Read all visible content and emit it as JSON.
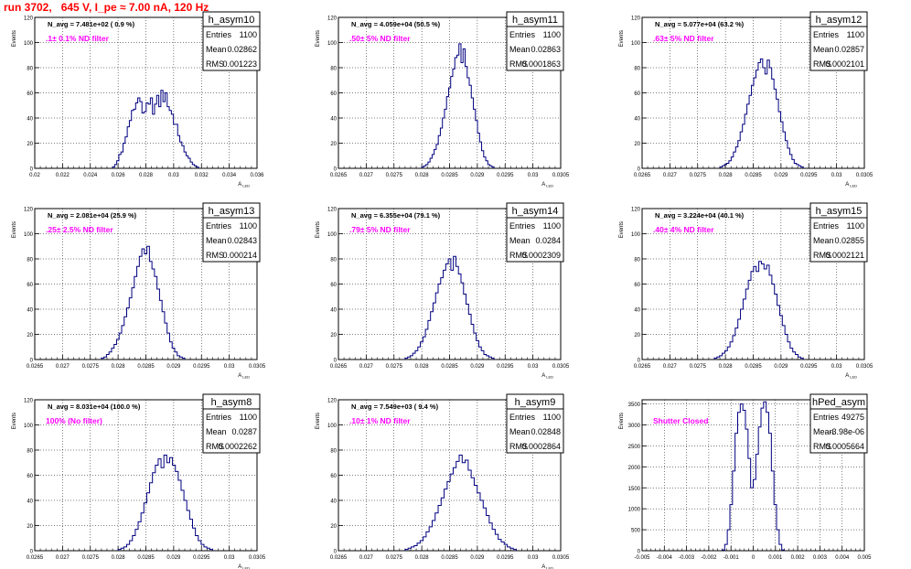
{
  "page": {
    "title": "run 3702,   645 V, I_pe ≈ 7.00 nA, 120 Hz"
  },
  "chart_data": [
    {
      "type": "bar",
      "name": "h_asym10",
      "stats": [
        [
          "Entries",
          "1100"
        ],
        [
          "Mean",
          "0.02862"
        ],
        [
          "RMS",
          "0.001223"
        ]
      ],
      "navg": "N_avg = 7.481e+02 ( 0.9 %)",
      "filter": ".1± 0.1% ND filter",
      "xlabel": "A_LED",
      "ylabel": "Events",
      "xlim": [
        0.02,
        0.036
      ],
      "ylim": [
        0,
        120
      ],
      "xticks": [
        0.02,
        0.022,
        0.024,
        0.026,
        0.028,
        0.03,
        0.032,
        0.034,
        0.036
      ],
      "xticklabels": [
        "0.02",
        "0.022",
        "0.024",
        "0.026",
        "0.028",
        "0.03",
        "0.032",
        "0.034",
        "0.036"
      ],
      "yticks": [
        0,
        20,
        40,
        60,
        80,
        100,
        120
      ],
      "x_range": [
        0.0256,
        0.0318
      ],
      "values": [
        1,
        3,
        6,
        11,
        13,
        20,
        25,
        33,
        38,
        46,
        47,
        52,
        56,
        53,
        44,
        45,
        52,
        51,
        56,
        43,
        51,
        58,
        49,
        62,
        53,
        60,
        49,
        46,
        43,
        35,
        35,
        26,
        21,
        18,
        13,
        10,
        8,
        5,
        3,
        2,
        1
      ]
    },
    {
      "type": "bar",
      "name": "h_asym11",
      "stats": [
        [
          "Entries",
          "1100"
        ],
        [
          "Mean",
          "0.02863"
        ],
        [
          "RMS",
          "0.0001863"
        ]
      ],
      "navg": "N_avg = 4.059e+04 (50.5 %)",
      "filter": ".50± 5% ND filter",
      "xlabel": "A_LED",
      "ylabel": "Events",
      "xlim": [
        0.0265,
        0.0305
      ],
      "ylim": [
        0,
        120
      ],
      "xticks": [
        0.0265,
        0.027,
        0.0275,
        0.028,
        0.0285,
        0.029,
        0.0295,
        0.03,
        0.0305
      ],
      "xticklabels": [
        "0.0265",
        "0.027",
        "0.0275",
        "0.028",
        "0.0285",
        "0.029",
        "0.0295",
        "0.03",
        "0.0305"
      ],
      "yticks": [
        0,
        20,
        40,
        60,
        80,
        100,
        120
      ],
      "x_range": [
        0.028,
        0.0293
      ],
      "values": [
        1,
        2,
        3,
        5,
        8,
        11,
        15,
        19,
        26,
        32,
        40,
        47,
        57,
        64,
        73,
        79,
        88,
        90,
        99,
        84,
        95,
        81,
        72,
        66,
        56,
        47,
        38,
        28,
        21,
        14,
        9,
        6,
        3,
        2,
        1
      ]
    },
    {
      "type": "bar",
      "name": "h_asym12",
      "stats": [
        [
          "Entries",
          "1100"
        ],
        [
          "Mean",
          "0.02857"
        ],
        [
          "RMS",
          "0.0002101"
        ]
      ],
      "navg": "N_avg = 5.077e+04 (63.2 %)",
      "filter": ".63± 5% ND filter",
      "xlabel": "A_LED",
      "ylabel": "Events",
      "xlim": [
        0.0265,
        0.0305
      ],
      "ylim": [
        0,
        120
      ],
      "xticks": [
        0.0265,
        0.027,
        0.0275,
        0.028,
        0.0285,
        0.029,
        0.0295,
        0.03,
        0.0305
      ],
      "xticklabels": [
        "0.0265",
        "0.027",
        "0.0275",
        "0.028",
        "0.0285",
        "0.029",
        "0.0295",
        "0.03",
        "0.0305"
      ],
      "yticks": [
        0,
        20,
        40,
        60,
        80,
        100,
        120
      ],
      "x_range": [
        0.0279,
        0.0294
      ],
      "values": [
        1,
        2,
        3,
        4,
        6,
        9,
        13,
        17,
        22,
        29,
        35,
        43,
        51,
        58,
        66,
        72,
        78,
        84,
        87,
        80,
        75,
        86,
        80,
        71,
        63,
        55,
        45,
        37,
        29,
        22,
        16,
        11,
        7,
        4,
        3,
        2,
        1
      ]
    },
    {
      "type": "bar",
      "name": "h_asym13",
      "stats": [
        [
          "Entries",
          "1100"
        ],
        [
          "Mean",
          "0.02843"
        ],
        [
          "RMS",
          "0.000214"
        ]
      ],
      "navg": "N_avg = 2.081e+04 (25.9 %)",
      "filter": ".25± 2.5% ND filter",
      "xlabel": "A_LED",
      "ylabel": "Events",
      "xlim": [
        0.0265,
        0.0305
      ],
      "ylim": [
        0,
        120
      ],
      "xticks": [
        0.0265,
        0.027,
        0.0275,
        0.028,
        0.0285,
        0.029,
        0.0295,
        0.03,
        0.0305
      ],
      "xticklabels": [
        "0.0265",
        "0.027",
        "0.0275",
        "0.028",
        "0.0285",
        "0.029",
        "0.0295",
        "0.03",
        "0.0305"
      ],
      "yticks": [
        0,
        20,
        40,
        60,
        80,
        100,
        120
      ],
      "x_range": [
        0.0277,
        0.0292
      ],
      "values": [
        1,
        2,
        4,
        6,
        9,
        12,
        16,
        21,
        27,
        34,
        41,
        49,
        57,
        66,
        74,
        82,
        88,
        84,
        90,
        78,
        72,
        66,
        56,
        47,
        38,
        29,
        21,
        14,
        9,
        6,
        3,
        2,
        1
      ]
    },
    {
      "type": "bar",
      "name": "h_asym14",
      "stats": [
        [
          "Entries",
          "1100"
        ],
        [
          "Mean",
          "0.0284"
        ],
        [
          "RMS",
          "0.0002309"
        ]
      ],
      "navg": "N_avg = 6.355e+04 (79.1 %)",
      "filter": ".79± 5% ND filter",
      "xlabel": "A_LED",
      "ylabel": "Events",
      "xlim": [
        0.0265,
        0.0305
      ],
      "ylim": [
        0,
        120
      ],
      "xticks": [
        0.0265,
        0.027,
        0.0275,
        0.028,
        0.0285,
        0.029,
        0.0295,
        0.03,
        0.0305
      ],
      "xticklabels": [
        "0.0265",
        "0.027",
        "0.0275",
        "0.028",
        "0.0285",
        "0.029",
        "0.0295",
        "0.03",
        "0.0305"
      ],
      "yticks": [
        0,
        20,
        40,
        60,
        80,
        100,
        120
      ],
      "x_range": [
        0.0277,
        0.0293
      ],
      "values": [
        1,
        2,
        3,
        5,
        7,
        10,
        14,
        18,
        24,
        31,
        38,
        45,
        53,
        60,
        65,
        71,
        76,
        80,
        71,
        82,
        74,
        68,
        61,
        52,
        44,
        36,
        28,
        21,
        15,
        10,
        7,
        4,
        3,
        2,
        1
      ]
    },
    {
      "type": "bar",
      "name": "h_asym15",
      "stats": [
        [
          "Entries",
          "1100"
        ],
        [
          "Mean",
          "0.02855"
        ],
        [
          "RMS",
          "0.0002121"
        ]
      ],
      "navg": "N_avg = 3.224e+04 (40.1 %)",
      "filter": ".40± 4% ND filter",
      "xlabel": "A_LED",
      "ylabel": "Events",
      "xlim": [
        0.0265,
        0.0305
      ],
      "ylim": [
        0,
        120
      ],
      "xticks": [
        0.0265,
        0.027,
        0.0275,
        0.028,
        0.0285,
        0.029,
        0.0295,
        0.03,
        0.0305
      ],
      "xticklabels": [
        "0.0265",
        "0.027",
        "0.0275",
        "0.028",
        "0.0285",
        "0.029",
        "0.0295",
        "0.03",
        "0.0305"
      ],
      "yticks": [
        0,
        20,
        40,
        60,
        80,
        100,
        120
      ],
      "x_range": [
        0.0278,
        0.0294
      ],
      "values": [
        1,
        2,
        3,
        5,
        7,
        10,
        14,
        19,
        25,
        32,
        40,
        48,
        56,
        63,
        70,
        74,
        70,
        78,
        76,
        72,
        75,
        67,
        60,
        52,
        43,
        35,
        27,
        20,
        14,
        9,
        6,
        4,
        2,
        1
      ]
    },
    {
      "type": "bar",
      "name": "h_asym8",
      "stats": [
        [
          "Entries",
          "1100"
        ],
        [
          "Mean",
          "0.0287"
        ],
        [
          "RMS",
          "0.0002262"
        ]
      ],
      "navg": "N_avg = 8.031e+04 (100.0 %)",
      "filter": "100% (No filter)",
      "xlabel": "A_LED",
      "ylabel": "Events",
      "xlim": [
        0.0265,
        0.0305
      ],
      "ylim": [
        0,
        120
      ],
      "xticks": [
        0.0265,
        0.027,
        0.0275,
        0.028,
        0.0285,
        0.029,
        0.0295,
        0.03,
        0.0305
      ],
      "xticklabels": [
        "0.0265",
        "0.027",
        "0.0275",
        "0.028",
        "0.0285",
        "0.029",
        "0.0295",
        "0.03",
        "0.0305"
      ],
      "yticks": [
        0,
        20,
        40,
        60,
        80,
        100,
        120
      ],
      "x_range": [
        0.028,
        0.0297
      ],
      "values": [
        1,
        2,
        3,
        5,
        8,
        12,
        17,
        23,
        30,
        38,
        46,
        54,
        62,
        68,
        73,
        66,
        76,
        70,
        74,
        68,
        63,
        56,
        48,
        40,
        32,
        25,
        18,
        12,
        8,
        5,
        3,
        2,
        1
      ]
    },
    {
      "type": "bar",
      "name": "h_asym9",
      "stats": [
        [
          "Entries",
          "1100"
        ],
        [
          "Mean",
          "0.02848"
        ],
        [
          "RMS",
          "0.0002864"
        ]
      ],
      "navg": "N_avg = 7.549e+03 ( 9.4 %)",
      "filter": ".10± 1% ND filter",
      "xlabel": "A_LED",
      "ylabel": "Events",
      "xlim": [
        0.0265,
        0.0305
      ],
      "ylim": [
        0,
        120
      ],
      "xticks": [
        0.0265,
        0.027,
        0.0275,
        0.028,
        0.0285,
        0.029,
        0.0295,
        0.03,
        0.0305
      ],
      "xticklabels": [
        "0.0265",
        "0.027",
        "0.0275",
        "0.028",
        "0.0285",
        "0.029",
        "0.0295",
        "0.03",
        "0.0305"
      ],
      "yticks": [
        0,
        20,
        40,
        60,
        80,
        100,
        120
      ],
      "x_range": [
        0.0277,
        0.0297
      ],
      "values": [
        1,
        2,
        3,
        4,
        6,
        8,
        11,
        15,
        19,
        24,
        30,
        36,
        42,
        49,
        55,
        61,
        66,
        71,
        76,
        70,
        72,
        64,
        58,
        52,
        46,
        40,
        34,
        28,
        22,
        17,
        13,
        9,
        7,
        5,
        3,
        2,
        1
      ]
    },
    {
      "type": "bar",
      "name": "hPed_asym",
      "stats": [
        [
          "Entries",
          "49275"
        ],
        [
          "Mean",
          "-3.98e-06"
        ],
        [
          "RMS",
          "0.0005664"
        ]
      ],
      "navg": "",
      "filter": "Shutter Closed",
      "xlabel": "",
      "ylabel": "Events",
      "xlim": [
        -0.005,
        0.005
      ],
      "ylim": [
        0,
        3600
      ],
      "xticks": [
        -0.005,
        -0.004,
        -0.003,
        -0.002,
        -0.001,
        0,
        0.001,
        0.002,
        0.003,
        0.004,
        0.005
      ],
      "xticklabels": [
        "-0.005",
        "-0.004",
        "-0.003",
        "-0.002",
        "-0.001",
        "0",
        "0.001",
        "0.002",
        "0.003",
        "0.004",
        "0.005"
      ],
      "yticks": [
        0,
        500,
        1000,
        1500,
        2000,
        2500,
        3000,
        3500
      ],
      "x_range": [
        -0.0014,
        0.0014
      ],
      "values": [
        20,
        150,
        500,
        1100,
        1900,
        2800,
        3300,
        3500,
        3350,
        2900,
        2200,
        1500,
        1700,
        2300,
        2950,
        3400,
        3550,
        3300,
        2800,
        1900,
        1100,
        500,
        150,
        20
      ]
    }
  ]
}
